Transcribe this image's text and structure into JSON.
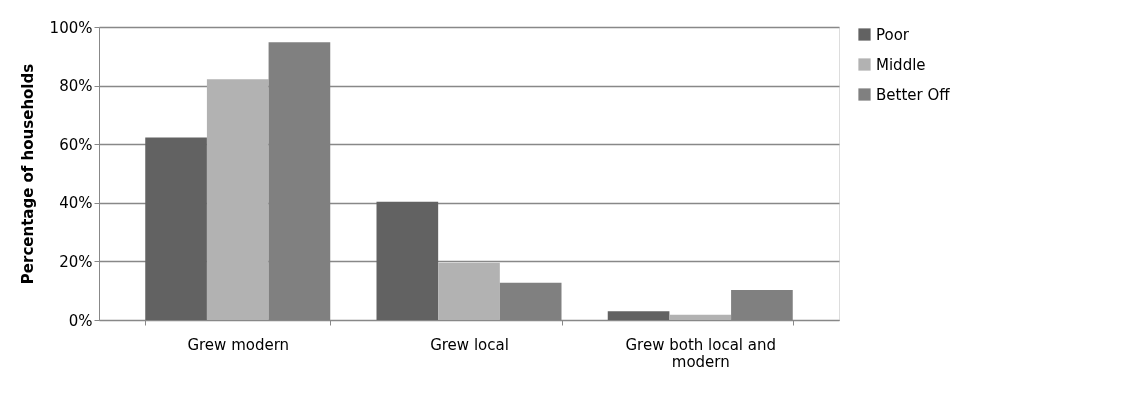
{
  "chart_data": {
    "type": "bar",
    "ylabel": "Percentage of households",
    "categories": [
      "Grew modern",
      "Grew local",
      "Grew both local and modern"
    ],
    "series": [
      {
        "name": "Poor",
        "color": "#626262",
        "values": [
          62.3,
          40.4,
          3.0
        ]
      },
      {
        "name": "Middle",
        "color": "#b2b2b2",
        "values": [
          82.2,
          19.5,
          1.8
        ]
      },
      {
        "name": "Better Off",
        "color": "#808080",
        "values": [
          94.8,
          12.7,
          10.2
        ]
      }
    ],
    "ylim": [
      0,
      100
    ],
    "yticks": [
      {
        "value": 0,
        "label": "0%"
      },
      {
        "value": 20,
        "label": "20%"
      },
      {
        "value": 40,
        "label": "40%"
      },
      {
        "value": 60,
        "label": "60%"
      },
      {
        "value": 80,
        "label": "80%"
      },
      {
        "value": 100,
        "label": "100%"
      }
    ],
    "grid": "y",
    "legend": "right"
  }
}
